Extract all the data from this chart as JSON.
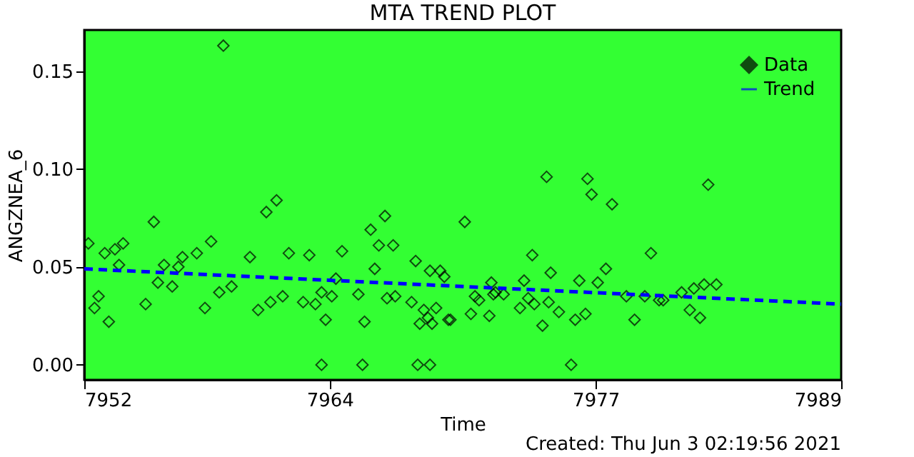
{
  "chart_data": {
    "type": "scatter",
    "title": "MTA TREND PLOT",
    "xlabel": "Time",
    "ylabel": "ANGZNEA_6",
    "xlim": [
      7952,
      7989
    ],
    "xticks": [
      7952,
      7964,
      7977,
      7989
    ],
    "ylim": [
      -0.0077,
      0.171
    ],
    "yticks": [
      {
        "value": 0,
        "label": "0.00"
      },
      {
        "value": 0.05,
        "label": "0.05"
      },
      {
        "value": 0.1,
        "label": "0.10"
      },
      {
        "value": 0.15,
        "label": "0.15"
      }
    ],
    "grid": false,
    "legend": "top right",
    "annotations": [
      "Created: Thu Jun  3 02:19:56 2021"
    ],
    "series": [
      {
        "name": "Data",
        "marker": "diamond",
        "color": "#000000",
        "x": [
          7952.2,
          7952.5,
          7952.7,
          7953.0,
          7953.2,
          7953.5,
          7953.7,
          7953.9,
          7955.0,
          7955.4,
          7955.6,
          7955.9,
          7956.3,
          7956.6,
          7956.8,
          7957.5,
          7957.9,
          7958.2,
          7958.6,
          7958.8,
          7959.2,
          7960.1,
          7960.5,
          7960.9,
          7961.1,
          7961.4,
          7961.7,
          7962.0,
          7962.7,
          7963.0,
          7963.3,
          7963.6,
          7963.6,
          7963.8,
          7964.1,
          7964.3,
          7964.6,
          7965.4,
          7965.6,
          7965.7,
          7966.0,
          7966.2,
          7966.4,
          7966.7,
          7966.8,
          7967.1,
          7967.2,
          7968.0,
          7968.2,
          7968.3,
          7968.4,
          7968.6,
          7968.8,
          7968.9,
          7968.9,
          7969.0,
          7969.2,
          7969.4,
          7969.6,
          7969.8,
          7969.9,
          7970.6,
          7970.9,
          7971.1,
          7971.3,
          7971.8,
          7971.9,
          7972.0,
          7972.1,
          7972.5,
          7973.3,
          7973.5,
          7973.7,
          7973.9,
          7974.0,
          7974.4,
          7974.6,
          7974.7,
          7974.8,
          7975.2,
          7975.8,
          7976.0,
          7976.2,
          7976.5,
          7976.6,
          7976.8,
          7977.1,
          7977.5,
          7977.8,
          7978.5,
          7978.9,
          7979.4,
          7979.7,
          7980.1,
          7980.3,
          7981.2,
          7981.6,
          7981.8,
          7982.1,
          7982.3,
          7982.5,
          7982.9
        ],
        "values": [
          0.062,
          0.029,
          0.035,
          0.057,
          0.022,
          0.059,
          0.051,
          0.062,
          0.031,
          0.073,
          0.042,
          0.051,
          0.04,
          0.05,
          0.055,
          0.057,
          0.029,
          0.063,
          0.037,
          0.163,
          0.04,
          0.055,
          0.028,
          0.078,
          0.032,
          0.084,
          0.035,
          0.057,
          0.032,
          0.056,
          0.031,
          0.037,
          0.0,
          0.023,
          0.035,
          0.044,
          0.058,
          0.036,
          0.0,
          0.022,
          0.069,
          0.049,
          0.061,
          0.076,
          0.034,
          0.061,
          0.035,
          0.032,
          0.053,
          0.0,
          0.021,
          0.028,
          0.024,
          0.0,
          0.048,
          0.021,
          0.029,
          0.048,
          0.045,
          0.023,
          0.023,
          0.073,
          0.026,
          0.035,
          0.033,
          0.025,
          0.042,
          0.036,
          0.037,
          0.036,
          0.029,
          0.043,
          0.034,
          0.056,
          0.031,
          0.02,
          0.096,
          0.032,
          0.047,
          0.027,
          0.0,
          0.023,
          0.043,
          0.026,
          0.095,
          0.087,
          0.042,
          0.049,
          0.082,
          0.035,
          0.023,
          0.035,
          0.057,
          0.033,
          0.033,
          0.037,
          0.028,
          0.039,
          0.024,
          0.041,
          0.092,
          0.041
        ]
      },
      {
        "name": "Trend",
        "type": "line",
        "line_style": "dashed",
        "color": "#0000ff",
        "x": [
          7952,
          7989
        ],
        "values": [
          0.049,
          0.031
        ]
      }
    ]
  }
}
